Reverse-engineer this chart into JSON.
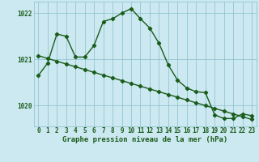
{
  "title": "Graphe pression niveau de la mer (hPa)",
  "background_color": "#cce8f0",
  "plot_bg_color": "#cce8f0",
  "grid_color": "#88bfcc",
  "line_color": "#1a5c1a",
  "xlim": [
    -0.5,
    23.5
  ],
  "ylim": [
    1019.55,
    1022.25
  ],
  "yticks": [
    1020,
    1021,
    1022
  ],
  "xticks": [
    0,
    1,
    2,
    3,
    4,
    5,
    6,
    7,
    8,
    9,
    10,
    11,
    12,
    13,
    14,
    15,
    16,
    17,
    18,
    19,
    20,
    21,
    22,
    23
  ],
  "series1_x": [
    0,
    1,
    2,
    3,
    4,
    5,
    6,
    7,
    8,
    9,
    10,
    11,
    12,
    13,
    14,
    15,
    16,
    17,
    18,
    19,
    20,
    21,
    22,
    23
  ],
  "series1_y": [
    1020.65,
    1020.92,
    1021.55,
    1021.5,
    1021.05,
    1021.05,
    1021.3,
    1021.82,
    1021.88,
    1022.0,
    1022.1,
    1021.88,
    1021.68,
    1021.35,
    1020.88,
    1020.55,
    1020.38,
    1020.3,
    1020.28,
    1019.8,
    1019.72,
    1019.72,
    1019.82,
    1019.78
  ],
  "series2_x": [
    0,
    1,
    2,
    3,
    4,
    5,
    6,
    7,
    8,
    9,
    10,
    11,
    12,
    13,
    14,
    15,
    16,
    17,
    18,
    19,
    20,
    21,
    22,
    23
  ],
  "series2_y": [
    1021.08,
    1021.02,
    1020.96,
    1020.9,
    1020.84,
    1020.78,
    1020.72,
    1020.66,
    1020.6,
    1020.54,
    1020.48,
    1020.42,
    1020.36,
    1020.3,
    1020.24,
    1020.18,
    1020.12,
    1020.06,
    1020.0,
    1019.94,
    1019.88,
    1019.82,
    1019.76,
    1019.7
  ],
  "marker": "D",
  "marker_size": 2.2,
  "linewidth": 1.0,
  "tick_fontsize": 5.5,
  "title_fontsize": 6.5
}
